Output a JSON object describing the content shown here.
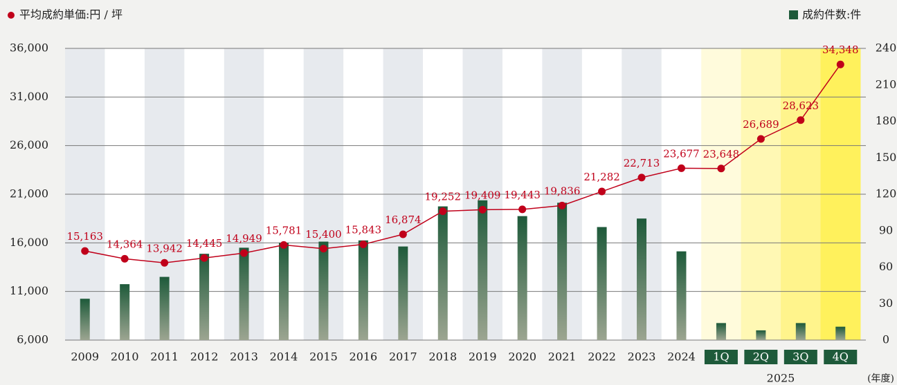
{
  "chart_data": {
    "type": "bar-line",
    "legend": {
      "line": "平均成約単価:円 / 坪",
      "bar": "成約件数:件"
    },
    "categories": [
      "2009",
      "2010",
      "2011",
      "2012",
      "2013",
      "2014",
      "2015",
      "2016",
      "2017",
      "2018",
      "2019",
      "2020",
      "2021",
      "2022",
      "2023",
      "2024",
      "1Q",
      "2Q",
      "3Q",
      "4Q"
    ],
    "x_group_label": "2025",
    "x_unit": "(年度)",
    "series": [
      {
        "name": "成約件数",
        "type": "bar",
        "axis": "y2",
        "color": "#1e5a3a",
        "values": [
          34,
          46,
          52,
          71,
          76,
          80,
          81,
          82,
          77,
          110,
          115,
          102,
          113,
          93,
          100,
          73,
          14,
          8,
          14,
          11
        ]
      },
      {
        "name": "平均成約単価",
        "type": "line",
        "axis": "y",
        "color": "#c0001a",
        "values": [
          15163,
          14364,
          13942,
          14445,
          14949,
          15781,
          15400,
          15843,
          16874,
          19252,
          19409,
          19443,
          19836,
          21282,
          22713,
          23677,
          23648,
          26689,
          28623,
          34348
        ],
        "value_labels": [
          "15,163",
          "14,364",
          "13,942",
          "14,445",
          "14,949",
          "15,781",
          "15,400",
          "15,843",
          "16,874",
          "19,252",
          "19,409",
          "19,443",
          "19,836",
          "21,282",
          "22,713",
          "23,677",
          "23,648",
          "26,689",
          "28,623",
          "34,348"
        ]
      }
    ],
    "ylim": [
      6000,
      36000
    ],
    "yticks": [
      {
        "value": 6000,
        "label": "6,000"
      },
      {
        "value": 11000,
        "label": "11,000"
      },
      {
        "value": 16000,
        "label": "16,000"
      },
      {
        "value": 21000,
        "label": "21,000"
      },
      {
        "value": 26000,
        "label": "26,000"
      },
      {
        "value": 31000,
        "label": "31,000"
      },
      {
        "value": 36000,
        "label": "36,000"
      }
    ],
    "y2lim": [
      0,
      240
    ],
    "y2ticks": [
      0,
      30,
      60,
      90,
      120,
      150,
      180,
      210,
      240
    ],
    "grid": true
  }
}
